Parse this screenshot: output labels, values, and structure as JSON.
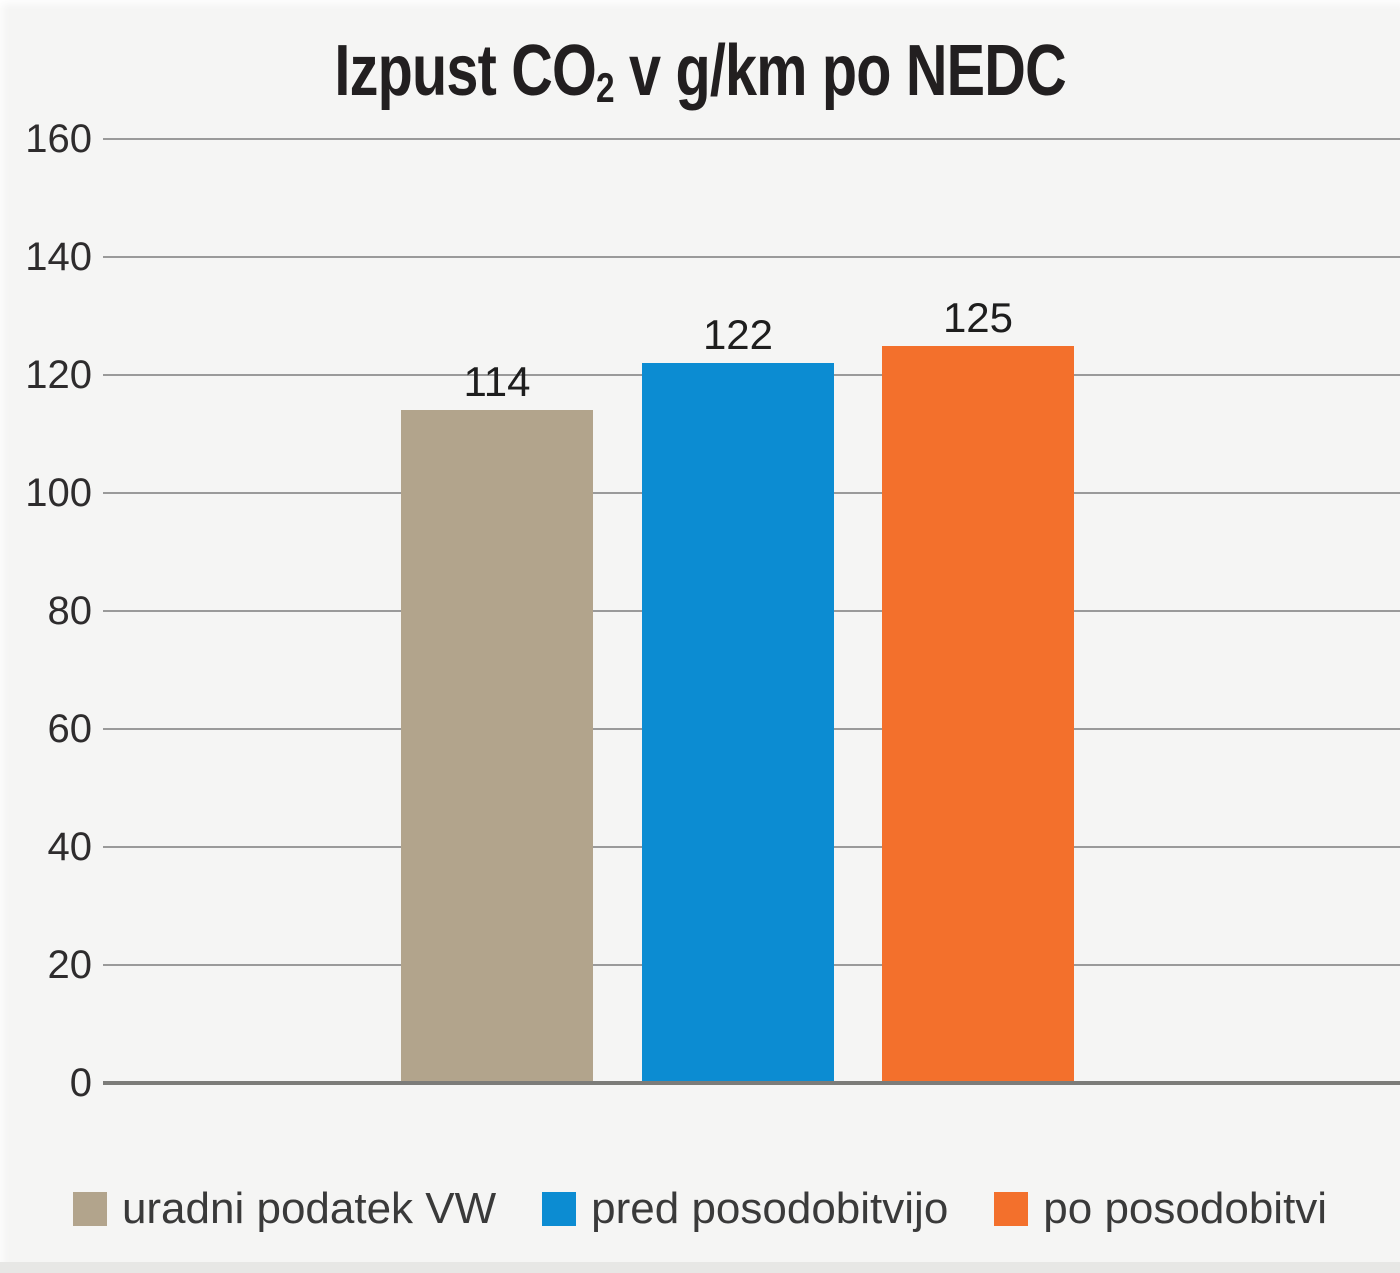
{
  "title": {
    "prefix": "Izpust CO",
    "subscript": "2",
    "suffix": " v g/km po NEDC"
  },
  "chart_data": {
    "type": "bar",
    "title": "Izpust CO2 v g/km po NEDC",
    "categories": [
      "uradni podatek VW",
      "pred posodobitvijo",
      "po posodobitvi"
    ],
    "values": [
      114,
      122,
      125
    ],
    "bar_labels": [
      "114",
      "122",
      "125"
    ],
    "bar_colors": [
      "#b2a48c",
      "#0c8cd2",
      "#f3702c"
    ],
    "xlabel": "",
    "ylabel": "",
    "ylim": [
      0,
      160
    ],
    "yticks": [
      0,
      20,
      40,
      60,
      80,
      100,
      120,
      140,
      160
    ],
    "grid": true,
    "gridline_color": "#9a9a9a",
    "baseline_color": "#7c7c79",
    "background_color": "#f5f5f4",
    "legend_position": "bottom",
    "legend_items": [
      {
        "label": "uradni podatek VW",
        "color": "#b2a48c"
      },
      {
        "label": "pred posodobitvijo",
        "color": "#0c8cd2"
      },
      {
        "label": "po posodobitvi",
        "color": "#f3702c"
      }
    ]
  }
}
